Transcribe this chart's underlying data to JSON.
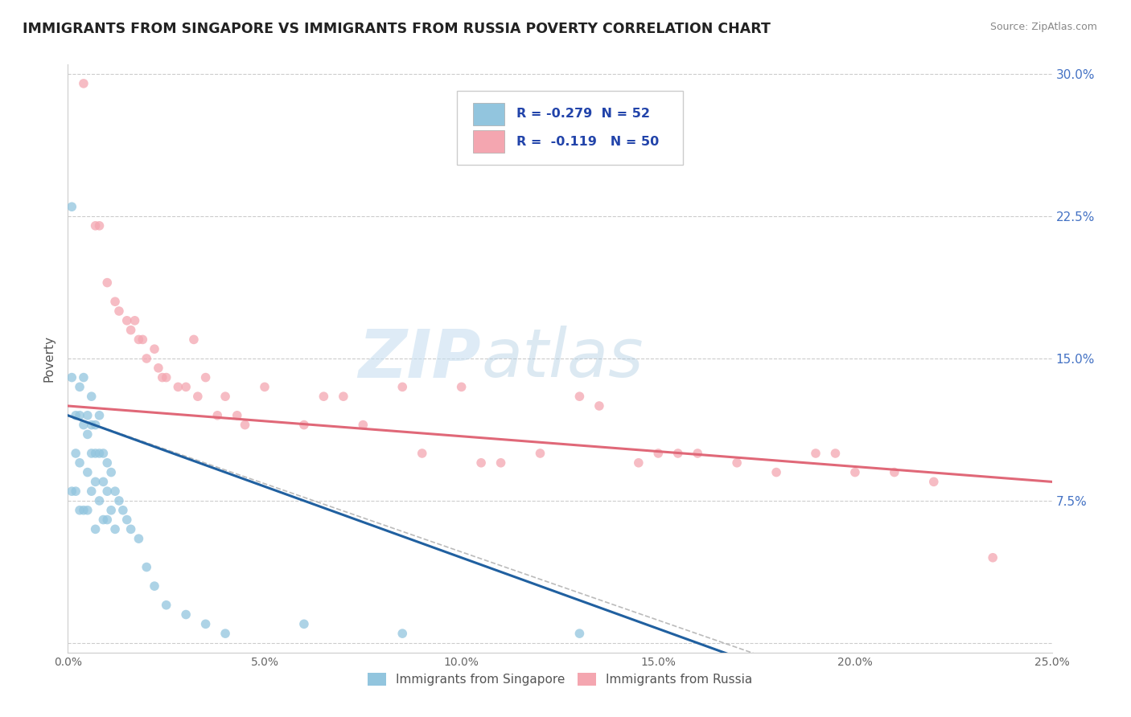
{
  "title": "IMMIGRANTS FROM SINGAPORE VS IMMIGRANTS FROM RUSSIA POVERTY CORRELATION CHART",
  "source": "Source: ZipAtlas.com",
  "ylabel": "Poverty",
  "xlim": [
    0,
    0.25
  ],
  "ylim": [
    -0.005,
    0.305
  ],
  "xticks": [
    0.0,
    0.05,
    0.1,
    0.15,
    0.2,
    0.25
  ],
  "yticks": [
    0.0,
    0.075,
    0.15,
    0.225,
    0.3
  ],
  "xtick_labels": [
    "0.0%",
    "5.0%",
    "10.0%",
    "15.0%",
    "20.0%",
    "25.0%"
  ],
  "ytick_labels": [
    "",
    "7.5%",
    "15.0%",
    "22.5%",
    "30.0%"
  ],
  "singapore_color": "#92c5de",
  "russia_color": "#f4a6b0",
  "singapore_line_color": "#2060a0",
  "russia_line_color": "#e06878",
  "singapore_R": -0.279,
  "singapore_N": 52,
  "russia_R": -0.119,
  "russia_N": 50,
  "legend_label_singapore": "Immigrants from Singapore",
  "legend_label_russia": "Immigrants from Russia",
  "singapore_x": [
    0.001,
    0.001,
    0.001,
    0.002,
    0.002,
    0.002,
    0.003,
    0.003,
    0.003,
    0.003,
    0.004,
    0.004,
    0.004,
    0.005,
    0.005,
    0.005,
    0.005,
    0.006,
    0.006,
    0.006,
    0.006,
    0.007,
    0.007,
    0.007,
    0.007,
    0.008,
    0.008,
    0.008,
    0.009,
    0.009,
    0.009,
    0.01,
    0.01,
    0.01,
    0.011,
    0.011,
    0.012,
    0.012,
    0.013,
    0.014,
    0.015,
    0.016,
    0.018,
    0.02,
    0.022,
    0.025,
    0.03,
    0.035,
    0.04,
    0.06,
    0.085,
    0.13
  ],
  "singapore_y": [
    0.23,
    0.14,
    0.08,
    0.12,
    0.1,
    0.08,
    0.135,
    0.12,
    0.095,
    0.07,
    0.14,
    0.115,
    0.07,
    0.12,
    0.11,
    0.09,
    0.07,
    0.13,
    0.115,
    0.1,
    0.08,
    0.115,
    0.1,
    0.085,
    0.06,
    0.12,
    0.1,
    0.075,
    0.1,
    0.085,
    0.065,
    0.095,
    0.08,
    0.065,
    0.09,
    0.07,
    0.08,
    0.06,
    0.075,
    0.07,
    0.065,
    0.06,
    0.055,
    0.04,
    0.03,
    0.02,
    0.015,
    0.01,
    0.005,
    0.01,
    0.005,
    0.005
  ],
  "russia_x": [
    0.004,
    0.007,
    0.008,
    0.01,
    0.012,
    0.013,
    0.015,
    0.016,
    0.017,
    0.018,
    0.019,
    0.02,
    0.022,
    0.023,
    0.024,
    0.025,
    0.028,
    0.03,
    0.032,
    0.033,
    0.035,
    0.038,
    0.04,
    0.043,
    0.045,
    0.05,
    0.06,
    0.065,
    0.07,
    0.075,
    0.085,
    0.09,
    0.1,
    0.105,
    0.11,
    0.12,
    0.13,
    0.135,
    0.145,
    0.15,
    0.155,
    0.16,
    0.17,
    0.18,
    0.19,
    0.195,
    0.2,
    0.21,
    0.22,
    0.235
  ],
  "russia_y": [
    0.295,
    0.22,
    0.22,
    0.19,
    0.18,
    0.175,
    0.17,
    0.165,
    0.17,
    0.16,
    0.16,
    0.15,
    0.155,
    0.145,
    0.14,
    0.14,
    0.135,
    0.135,
    0.16,
    0.13,
    0.14,
    0.12,
    0.13,
    0.12,
    0.115,
    0.135,
    0.115,
    0.13,
    0.13,
    0.115,
    0.135,
    0.1,
    0.135,
    0.095,
    0.095,
    0.1,
    0.13,
    0.125,
    0.095,
    0.1,
    0.1,
    0.1,
    0.095,
    0.09,
    0.1,
    0.1,
    0.09,
    0.09,
    0.085,
    0.045
  ],
  "watermark_zip": "ZIP",
  "watermark_atlas": "atlas",
  "background_color": "#ffffff"
}
